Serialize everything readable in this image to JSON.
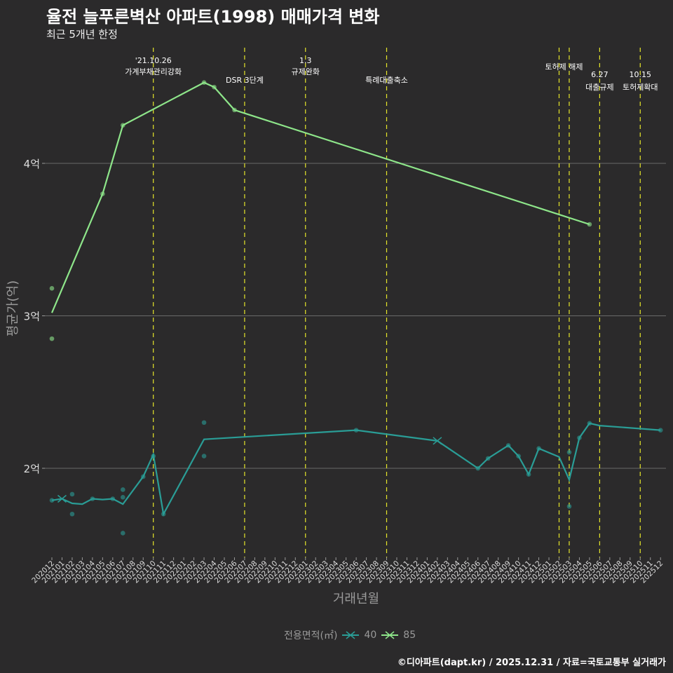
{
  "title": "율전 늘푸른벽산 아파트(1998) 매매가격 변화",
  "subtitle": "최근 5개년 한정",
  "caption": "©디아파트(dapt.kr) / 2025.12.31 / 자료=국토교통부 실거래가",
  "colors": {
    "s40": "#2a9d96",
    "s85": "#8ee68a",
    "event": "#e6e62a",
    "grid": "#6a6a6a",
    "axis_text": "#dddddd"
  },
  "chart_data": {
    "type": "line",
    "title": "율전 늘푸른벽산 아파트(1998) 매매가격 변화",
    "xlabel": "거래년월",
    "ylabel": "평균가(억)",
    "ylim": [
      1.45,
      4.8
    ],
    "y_ticks": [
      {
        "value": 2,
        "label": "2억"
      },
      {
        "value": 3,
        "label": "3억"
      },
      {
        "value": 4,
        "label": "4억"
      }
    ],
    "x_labels": [
      "202012",
      "202101",
      "202102",
      "202103",
      "202104",
      "202105",
      "202106",
      "202107",
      "202108",
      "202109",
      "202110",
      "202111",
      "202112",
      "202201",
      "202202",
      "202203",
      "202204",
      "202205",
      "202206",
      "202207",
      "202208",
      "202209",
      "202210",
      "202211",
      "202212",
      "202301",
      "202302",
      "202303",
      "202304",
      "202305",
      "202306",
      "202307",
      "202308",
      "202309",
      "202310",
      "202311",
      "202312",
      "202401",
      "202402",
      "202403",
      "202404",
      "202405",
      "202406",
      "202407",
      "202408",
      "202409",
      "202410",
      "202411",
      "202412",
      "202501",
      "202502",
      "202503",
      "202504",
      "202505",
      "202506",
      "202507",
      "202508",
      "202509",
      "202510",
      "202511",
      "202512"
    ],
    "legend": {
      "title": "전용면적(㎡)",
      "placement": "bottom"
    },
    "series": [
      {
        "name": "40",
        "color_key": "s40",
        "line": [
          [
            0,
            1.79
          ],
          [
            1,
            1.8
          ],
          [
            2,
            1.77
          ],
          [
            3,
            1.765
          ],
          [
            4,
            1.8
          ],
          [
            5,
            1.795
          ],
          [
            6,
            1.8
          ],
          [
            7,
            1.765
          ],
          [
            9,
            1.945
          ],
          [
            10,
            2.09
          ],
          [
            11,
            1.7
          ],
          [
            15,
            2.19
          ],
          [
            30,
            2.25
          ],
          [
            38,
            2.18
          ],
          [
            42,
            2.0
          ],
          [
            43,
            2.065
          ],
          [
            45,
            2.15
          ],
          [
            46,
            2.08
          ],
          [
            47,
            1.96
          ],
          [
            48,
            2.13
          ],
          [
            50,
            2.075
          ],
          [
            51,
            1.925
          ],
          [
            52,
            2.2
          ],
          [
            53,
            2.295
          ],
          [
            54,
            2.28
          ],
          [
            60,
            2.25
          ]
        ],
        "points": [
          [
            2,
            1.83
          ],
          [
            2,
            1.7
          ],
          [
            7,
            1.86
          ],
          [
            7,
            1.81
          ],
          [
            7,
            1.575
          ],
          [
            10,
            2.08
          ],
          [
            15,
            2.3
          ],
          [
            15,
            2.08
          ],
          [
            51,
            2.105
          ],
          [
            51,
            1.75
          ],
          [
            0,
            1.79
          ],
          [
            4,
            1.8
          ],
          [
            6,
            1.8
          ],
          [
            9,
            1.945
          ],
          [
            11,
            1.7
          ],
          [
            30,
            2.25
          ],
          [
            42,
            2.0
          ],
          [
            43,
            2.065
          ],
          [
            45,
            2.15
          ],
          [
            46,
            2.08
          ],
          [
            47,
            1.96
          ],
          [
            48,
            2.13
          ],
          [
            52,
            2.2
          ],
          [
            53,
            2.295
          ],
          [
            60,
            2.25
          ]
        ],
        "crosses": [
          [
            1,
            1.8
          ],
          [
            38,
            2.18
          ]
        ]
      },
      {
        "name": "85",
        "color_key": "s85",
        "line": [
          [
            0,
            3.02
          ],
          [
            5,
            3.8
          ],
          [
            7,
            4.25
          ],
          [
            15,
            4.53
          ],
          [
            16,
            4.5
          ],
          [
            18,
            4.35
          ],
          [
            53,
            3.6
          ]
        ],
        "points": [
          [
            0,
            3.18
          ],
          [
            0,
            2.85
          ],
          [
            5,
            3.8
          ],
          [
            7,
            4.25
          ],
          [
            15,
            4.53
          ],
          [
            16,
            4.5
          ],
          [
            18,
            4.35
          ],
          [
            53,
            3.6
          ]
        ],
        "crosses": []
      }
    ],
    "events": [
      {
        "month": "202110",
        "lines": [
          "'21.10.26",
          "가계부채관리강화"
        ]
      },
      {
        "month": "202207",
        "lines": [
          "DSR 3단계"
        ]
      },
      {
        "month": "202301",
        "lines": [
          "1.3",
          "규제완화"
        ]
      },
      {
        "month": "202309",
        "lines": [
          "특례대출축소"
        ]
      },
      {
        "month": "202502",
        "lines": [
          "토허제 해제"
        ]
      },
      {
        "month": "202503",
        "lines": []
      },
      {
        "month": "202506",
        "lines": [
          "6.27",
          "대출규제"
        ]
      },
      {
        "month": "202510",
        "lines": [
          "10.15",
          "토허제확대"
        ]
      }
    ]
  }
}
